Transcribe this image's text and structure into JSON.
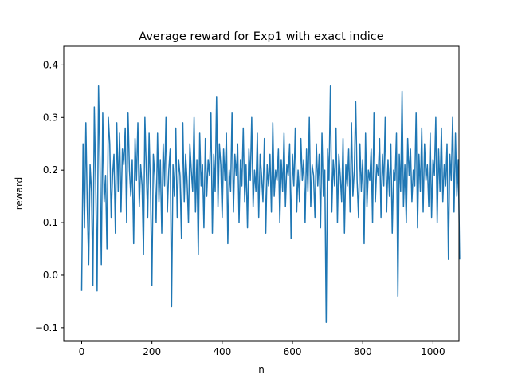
{
  "chart_data": {
    "type": "line",
    "title": "Average reward for Exp1 with exact indice",
    "xlabel": "n",
    "ylabel": "reward",
    "xlim": [
      -51,
      1074
    ],
    "ylim": [
      -0.1245,
      0.4355
    ],
    "xticks": [
      0,
      200,
      400,
      600,
      800,
      1000
    ],
    "xtick_labels": [
      "0",
      "200",
      "400",
      "600",
      "800",
      "1000"
    ],
    "yticks": [
      -0.1,
      0.0,
      0.1,
      0.2,
      0.3,
      0.4
    ],
    "ytick_labels": [
      "−0.1",
      "0.0",
      "0.1",
      "0.2",
      "0.3",
      "0.4"
    ],
    "grid": false,
    "legend": "none",
    "line_color": "#1f77b4",
    "series": [
      {
        "x_start": 0,
        "x_step": 4,
        "values": [
          -0.03,
          0.25,
          0.09,
          0.29,
          0.13,
          0.02,
          0.21,
          0.16,
          -0.02,
          0.32,
          0.18,
          -0.03,
          0.36,
          0.22,
          0.02,
          0.31,
          0.14,
          0.19,
          0.05,
          0.3,
          0.25,
          0.11,
          0.19,
          0.23,
          0.08,
          0.29,
          0.16,
          0.27,
          0.12,
          0.24,
          0.21,
          0.28,
          0.1,
          0.31,
          0.2,
          0.15,
          0.22,
          0.06,
          0.26,
          0.18,
          0.29,
          0.13,
          0.21,
          0.17,
          0.04,
          0.3,
          0.2,
          0.11,
          0.27,
          0.16,
          -0.02,
          0.23,
          0.19,
          0.1,
          0.27,
          0.14,
          0.22,
          0.08,
          0.25,
          0.17,
          0.3,
          0.12,
          0.2,
          0.24,
          -0.06,
          0.21,
          0.15,
          0.28,
          0.11,
          0.22,
          0.19,
          0.07,
          0.29,
          0.14,
          0.23,
          0.18,
          0.1,
          0.25,
          0.2,
          0.16,
          0.3,
          0.12,
          0.22,
          0.04,
          0.27,
          0.17,
          0.21,
          0.09,
          0.26,
          0.15,
          0.22,
          0.19,
          0.31,
          0.08,
          0.23,
          0.16,
          0.34,
          0.13,
          0.25,
          0.21,
          0.11,
          0.24,
          0.18,
          0.27,
          0.06,
          0.2,
          0.16,
          0.31,
          0.12,
          0.23,
          0.19,
          0.25,
          0.1,
          0.22,
          0.17,
          0.28,
          0.14,
          0.21,
          0.09,
          0.24,
          0.18,
          0.3,
          0.13,
          0.2,
          0.16,
          0.27,
          0.11,
          0.23,
          0.19,
          0.14,
          0.26,
          0.08,
          0.21,
          0.17,
          0.23,
          0.12,
          0.29,
          0.15,
          0.2,
          0.18,
          0.24,
          0.1,
          0.22,
          0.16,
          0.27,
          0.13,
          0.21,
          0.19,
          0.25,
          0.07,
          0.23,
          0.17,
          0.28,
          0.12,
          0.2,
          0.14,
          0.26,
          0.18,
          0.22,
          0.1,
          0.24,
          0.16,
          0.3,
          0.13,
          0.21,
          0.19,
          0.11,
          0.25,
          0.17,
          0.23,
          0.09,
          0.27,
          0.15,
          0.2,
          -0.09,
          0.24,
          0.18,
          0.36,
          0.12,
          0.22,
          0.17,
          0.28,
          0.1,
          0.23,
          0.19,
          0.14,
          0.26,
          0.08,
          0.21,
          0.17,
          0.24,
          0.12,
          0.29,
          0.15,
          0.2,
          0.33,
          0.18,
          0.11,
          0.25,
          0.16,
          0.22,
          0.06,
          0.27,
          0.13,
          0.2,
          0.18,
          0.24,
          0.1,
          0.31,
          0.14,
          0.21,
          0.19,
          0.26,
          0.11,
          0.23,
          0.17,
          0.3,
          0.12,
          0.22,
          0.15,
          0.25,
          0.08,
          0.2,
          0.18,
          0.27,
          -0.04,
          0.23,
          0.16,
          0.35,
          0.13,
          0.21,
          0.1,
          0.26,
          0.19,
          0.24,
          0.14,
          0.2,
          0.17,
          0.31,
          0.09,
          0.23,
          0.16,
          0.28,
          0.12,
          0.25,
          0.18,
          0.21,
          0.13,
          0.27,
          0.11,
          0.22,
          0.19,
          0.3,
          0.1,
          0.24,
          0.16,
          0.28,
          0.14,
          0.21,
          0.17,
          0.25,
          0.03,
          0.23,
          0.18,
          0.3,
          0.12,
          0.27,
          0.15,
          0.22,
          0.03
        ]
      }
    ]
  }
}
